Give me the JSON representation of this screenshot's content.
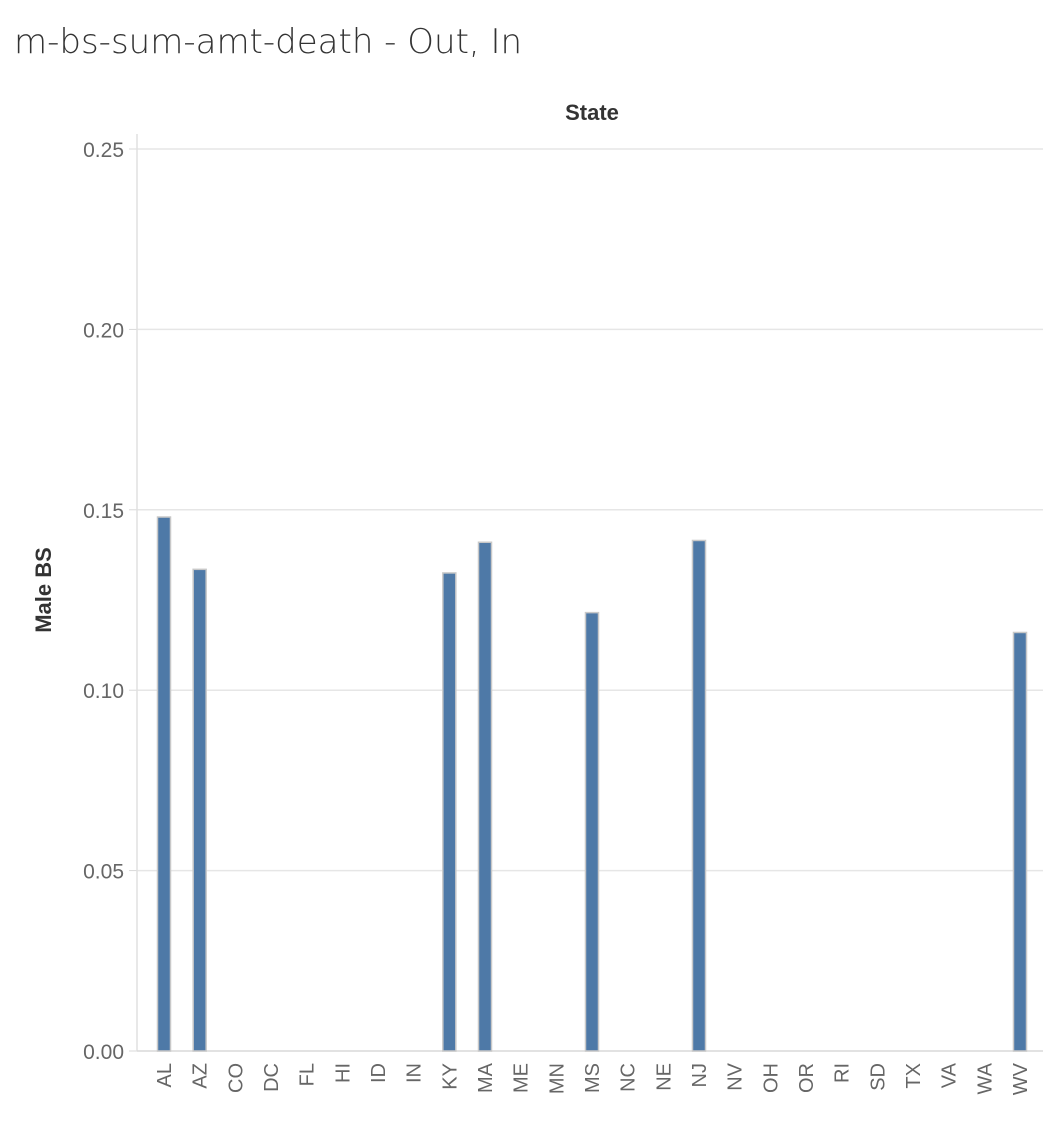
{
  "title": "m-bs-sum-amt-death - Out, In",
  "chart_data": {
    "type": "bar",
    "title": "m-bs-sum-amt-death - Out, In",
    "xlabel": "State",
    "ylabel": "Male BS",
    "categories": [
      "AL",
      "AZ",
      "CO",
      "DC",
      "FL",
      "HI",
      "ID",
      "IN",
      "KY",
      "MA",
      "ME",
      "MN",
      "MS",
      "NC",
      "NE",
      "NJ",
      "NV",
      "OH",
      "OR",
      "RI",
      "SD",
      "TX",
      "VA",
      "WA",
      "WV"
    ],
    "values": [
      0.148,
      0.1335,
      null,
      null,
      null,
      null,
      null,
      null,
      0.1325,
      0.141,
      null,
      null,
      0.1215,
      null,
      null,
      0.1415,
      null,
      null,
      null,
      null,
      null,
      null,
      null,
      null,
      0.116
    ],
    "ylim": [
      0,
      0.25
    ],
    "yticks": [
      "0.00",
      "0.05",
      "0.10",
      "0.15",
      "0.20",
      "0.25"
    ],
    "grid": true,
    "bar_color": "#4e79a7",
    "bar_stroke": "#c8c8c8"
  }
}
